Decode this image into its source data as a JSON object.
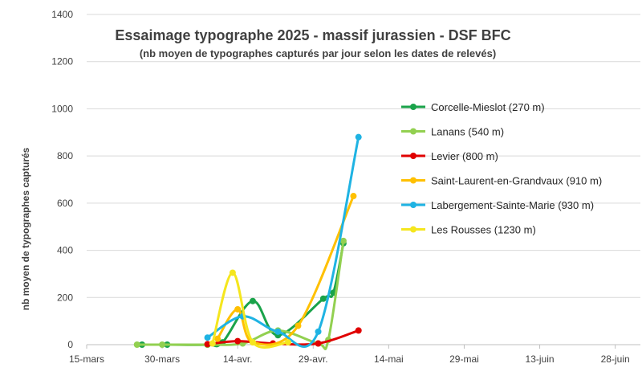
{
  "chart_data": {
    "type": "line",
    "title": "Essaimage typographe 2025 - massif jurassien - DSF BFC",
    "subtitle": "(nb moyen de typographes capturés par jour selon les dates de relevés)",
    "xlabel": "",
    "ylabel": "nb moyen de typographes capturés",
    "ylim": [
      0,
      1400
    ],
    "yticks": [
      "0",
      "200",
      "400",
      "600",
      "800",
      "1000",
      "1200",
      "1400"
    ],
    "xlim": [
      "2025-03-15",
      "2025-07-03"
    ],
    "xticks": [
      {
        "date": "2025-03-15",
        "label": "15-mars"
      },
      {
        "date": "2025-03-30",
        "label": "30-mars"
      },
      {
        "date": "2025-04-14",
        "label": "14-avr."
      },
      {
        "date": "2025-04-29",
        "label": "29-avr."
      },
      {
        "date": "2025-05-14",
        "label": "14-mai"
      },
      {
        "date": "2025-05-29",
        "label": "29-mai"
      },
      {
        "date": "2025-06-13",
        "label": "13-juin"
      },
      {
        "date": "2025-06-28",
        "label": "28-juin"
      }
    ],
    "grid": "horizontal",
    "legend_position": "right",
    "series": [
      {
        "name": "Corcelle-Mieslot (270 m)",
        "color": "#1aa34a",
        "points": [
          [
            "2025-03-26",
            0
          ],
          [
            "2025-03-31",
            0
          ],
          [
            "2025-04-08",
            0
          ],
          [
            "2025-04-11",
            10
          ],
          [
            "2025-04-17",
            185
          ],
          [
            "2025-04-22",
            40
          ],
          [
            "2025-05-01",
            195
          ],
          [
            "2025-05-03",
            220
          ],
          [
            "2025-05-05",
            430
          ]
        ]
      },
      {
        "name": "Lanans (540 m)",
        "color": "#92d050",
        "points": [
          [
            "2025-03-25",
            0
          ],
          [
            "2025-03-30",
            0
          ],
          [
            "2025-04-08",
            0
          ],
          [
            "2025-04-15",
            5
          ],
          [
            "2025-04-22",
            60
          ],
          [
            "2025-04-30",
            5
          ],
          [
            "2025-05-02",
            20
          ],
          [
            "2025-05-05",
            440
          ]
        ]
      },
      {
        "name": "Levier (800 m)",
        "color": "#e00000",
        "points": [
          [
            "2025-04-08",
            2
          ],
          [
            "2025-04-14",
            15
          ],
          [
            "2025-04-21",
            5
          ],
          [
            "2025-04-30",
            5
          ],
          [
            "2025-05-08",
            60
          ]
        ]
      },
      {
        "name": "Saint-Laurent-en-Grandvaux (910 m)",
        "color": "#ffc000",
        "points": [
          [
            "2025-04-10",
            25
          ],
          [
            "2025-04-14",
            150
          ],
          [
            "2025-04-17",
            10
          ],
          [
            "2025-04-26",
            80
          ],
          [
            "2025-05-07",
            630
          ]
        ]
      },
      {
        "name": "Labergement-Sainte-Marie  (930 m)",
        "color": "#1fb3e3",
        "points": [
          [
            "2025-04-08",
            30
          ],
          [
            "2025-04-15",
            120
          ],
          [
            "2025-04-22",
            55
          ],
          [
            "2025-04-30",
            55
          ],
          [
            "2025-05-08",
            880
          ]
        ]
      },
      {
        "name": "Les Rousses (1230 m)",
        "color": "#f5e61e",
        "points": [
          [
            "2025-04-09",
            5
          ],
          [
            "2025-04-13",
            305
          ],
          [
            "2025-04-17",
            10
          ],
          [
            "2025-04-24",
            10
          ]
        ]
      }
    ]
  }
}
